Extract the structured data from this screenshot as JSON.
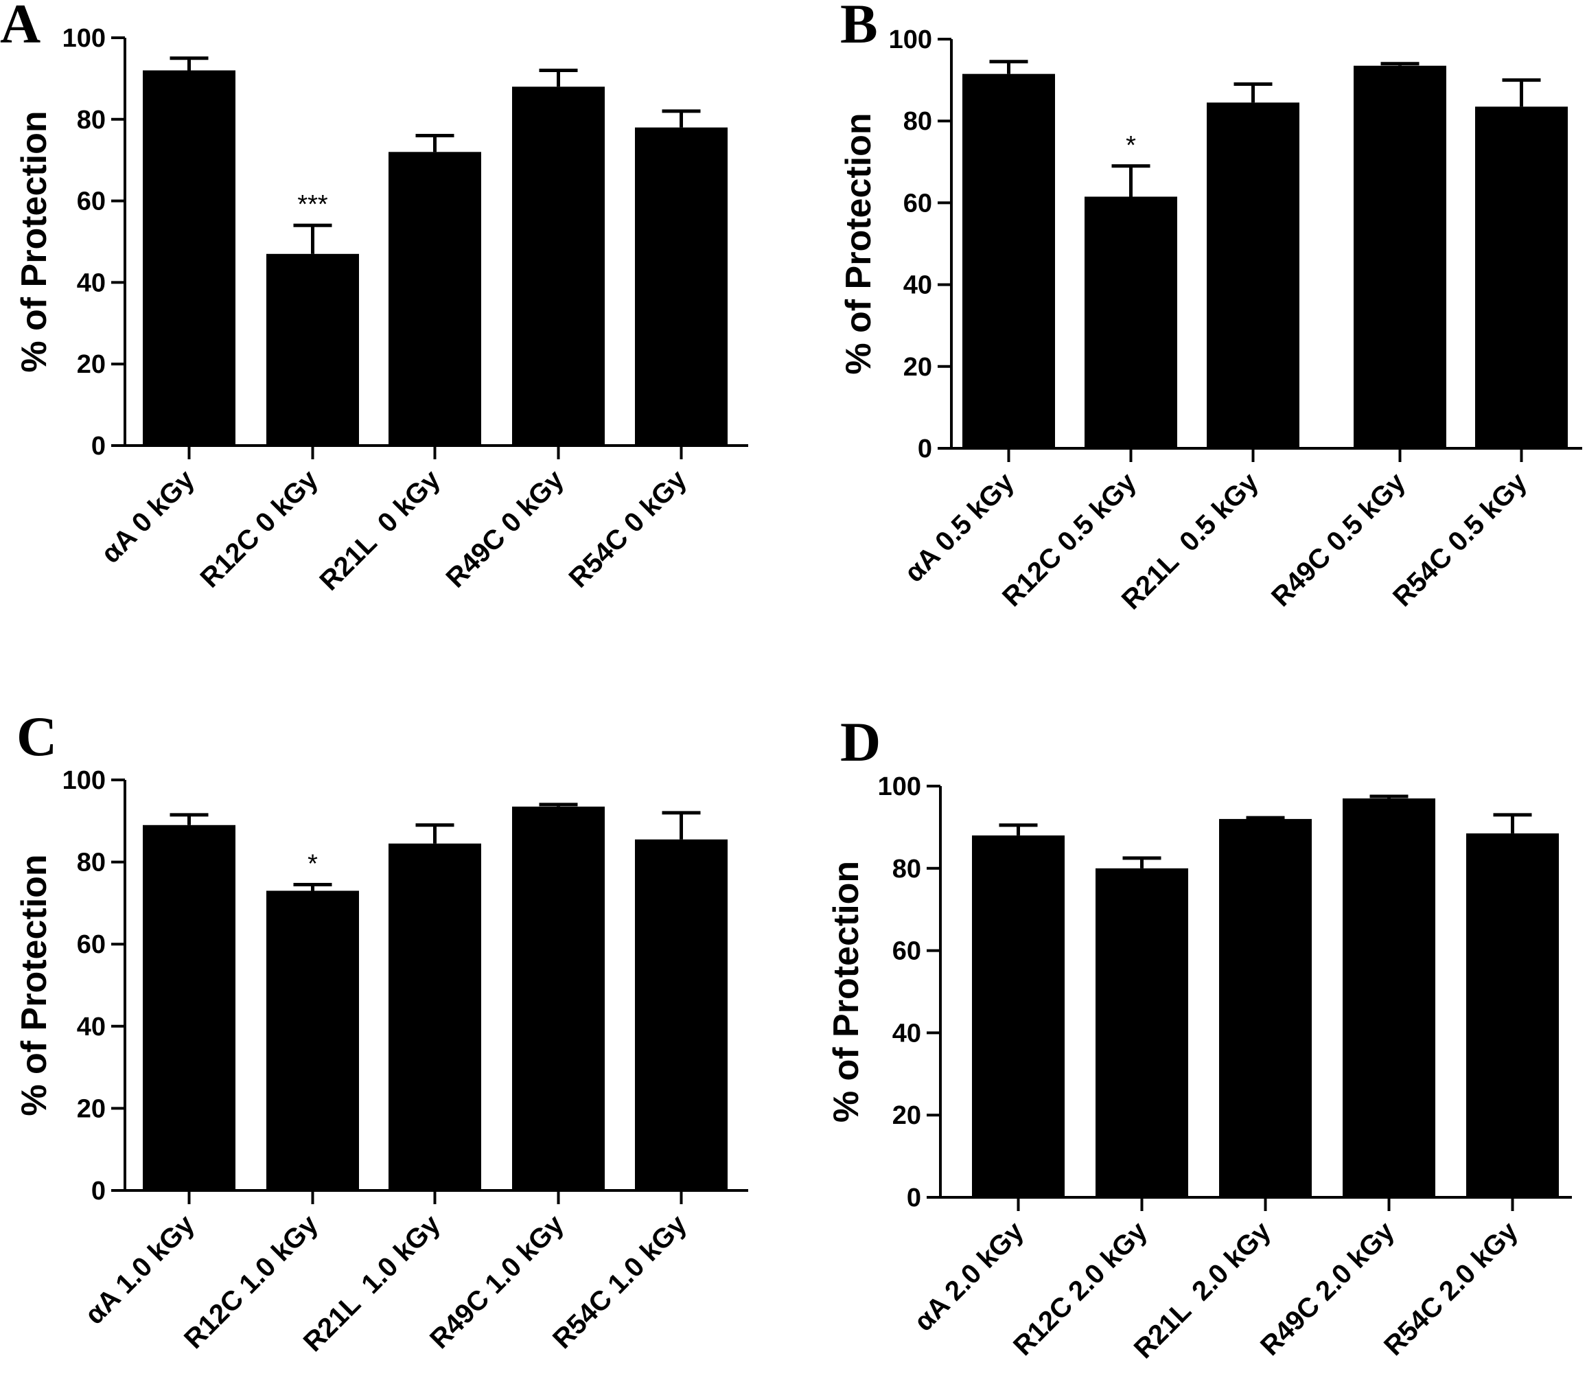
{
  "chart_data": [
    {
      "type": "bar",
      "panel": "A",
      "ylabel": "% of Protection",
      "ylim": [
        0,
        100
      ],
      "yticks": [
        0,
        20,
        40,
        60,
        80,
        100
      ],
      "categories": [
        "αA 0 kGy",
        "R12C 0 kGy",
        "R21L  0 kGy",
        "R49C 0 kGy",
        "R54C 0 kGy"
      ],
      "values": [
        92,
        47,
        72,
        88,
        78
      ],
      "errors": [
        3,
        7,
        4,
        4,
        4
      ],
      "annotations": [
        "",
        "***",
        "",
        "",
        ""
      ],
      "bar_color": "#000000"
    },
    {
      "type": "bar",
      "panel": "B",
      "ylabel": "% of Protection",
      "ylim": [
        0,
        100
      ],
      "yticks": [
        0,
        20,
        40,
        60,
        80,
        100
      ],
      "categories": [
        "αA 0.5 kGy",
        "R12C 0.5 kGy",
        "R21L  0.5 kGy",
        "R49C 0.5 kGy",
        "R54C 0.5 kGy"
      ],
      "values": [
        91.5,
        61.5,
        84.5,
        93.5,
        83.5
      ],
      "errors": [
        3,
        7.5,
        4.5,
        0.5,
        6.5
      ],
      "annotations": [
        "",
        "*",
        "",
        "",
        ""
      ],
      "bar_color": "#000000"
    },
    {
      "type": "bar",
      "panel": "C",
      "ylabel": "% of Protection",
      "ylim": [
        0,
        100
      ],
      "yticks": [
        0,
        20,
        40,
        60,
        80,
        100
      ],
      "categories": [
        "αA 1.0 kGy",
        "R12C 1.0 kGy",
        "R21L  1.0 kGy",
        "R49C 1.0 kGy",
        "R54C 1.0 kGy"
      ],
      "values": [
        89,
        73,
        84.5,
        93.5,
        85.5
      ],
      "errors": [
        2.5,
        1.5,
        4.5,
        0.5,
        6.5
      ],
      "annotations": [
        "",
        "*",
        "",
        "",
        ""
      ],
      "bar_color": "#000000"
    },
    {
      "type": "bar",
      "panel": "D",
      "ylabel": "% of Protection",
      "ylim": [
        0,
        100
      ],
      "yticks": [
        0,
        20,
        40,
        60,
        80,
        100
      ],
      "categories": [
        "αA 2.0 kGy",
        "R12C 2.0 kGy",
        "R21L  2.0 kGy",
        "R49C 2.0 kGy",
        "R54C 2.0 kGy"
      ],
      "values": [
        88,
        80,
        92,
        97,
        88.5
      ],
      "errors": [
        2.5,
        2.5,
        0.3,
        0.5,
        4.5
      ],
      "annotations": [
        "",
        "",
        "",
        "",
        ""
      ],
      "bar_color": "#000000"
    }
  ]
}
